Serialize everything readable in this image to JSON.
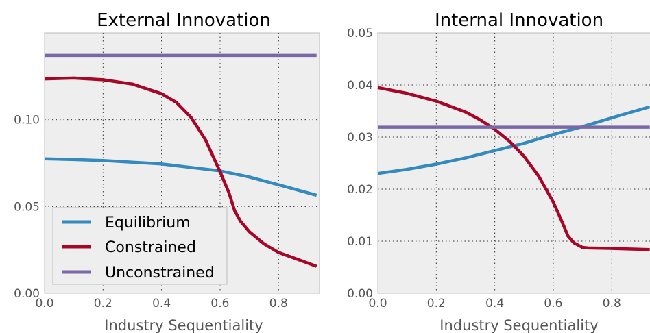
{
  "chart_data": [
    {
      "type": "line",
      "title": "External Innovation",
      "xlabel": "Industry Sequentiality",
      "ylabel": "",
      "xlim": [
        0,
        0.94
      ],
      "ylim": [
        0,
        0.15
      ],
      "xticks": [
        "0.0",
        "0.2",
        "0.4",
        "0.6",
        "0.8"
      ],
      "xtick_values": [
        0,
        0.2,
        0.4,
        0.6,
        0.8
      ],
      "yticks": [
        "0.00",
        "0.05",
        "0.10"
      ],
      "ytick_values": [
        0,
        0.05,
        0.1
      ],
      "grid": true,
      "legend": "bottom-left",
      "series": [
        {
          "name": "Equilibrium",
          "color": "#348ABD",
          "x": [
            0,
            0.1,
            0.2,
            0.3,
            0.4,
            0.5,
            0.6,
            0.7,
            0.8,
            0.93
          ],
          "y": [
            0.0775,
            0.077,
            0.0765,
            0.0755,
            0.0745,
            0.0725,
            0.0705,
            0.067,
            0.0625,
            0.0565
          ]
        },
        {
          "name": "Constrained",
          "color": "#A60628",
          "x": [
            0,
            0.1,
            0.2,
            0.3,
            0.4,
            0.45,
            0.5,
            0.55,
            0.6,
            0.63,
            0.65,
            0.67,
            0.7,
            0.75,
            0.8,
            0.85,
            0.93
          ],
          "y": [
            0.1235,
            0.124,
            0.123,
            0.1205,
            0.115,
            0.11,
            0.1015,
            0.0885,
            0.07,
            0.058,
            0.0475,
            0.0415,
            0.0355,
            0.0285,
            0.0235,
            0.0205,
            0.0155
          ]
        },
        {
          "name": "Unconstrained",
          "color": "#7A68A6",
          "x": [
            0,
            0.93
          ],
          "y": [
            0.137,
            0.137
          ]
        }
      ]
    },
    {
      "type": "line",
      "title": "Internal Innovation",
      "xlabel": "Industry Sequentiality",
      "ylabel": "",
      "xlim": [
        0,
        0.94
      ],
      "ylim": [
        0,
        0.05
      ],
      "xticks": [
        "0.0",
        "0.2",
        "0.4",
        "0.6",
        "0.8"
      ],
      "xtick_values": [
        0,
        0.2,
        0.4,
        0.6,
        0.8
      ],
      "yticks": [
        "0.00",
        "0.01",
        "0.02",
        "0.03",
        "0.04",
        "0.05"
      ],
      "ytick_values": [
        0,
        0.01,
        0.02,
        0.03,
        0.04,
        0.05
      ],
      "grid": true,
      "series": [
        {
          "name": "Equilibrium",
          "color": "#348ABD",
          "x": [
            0,
            0.1,
            0.2,
            0.3,
            0.4,
            0.5,
            0.6,
            0.7,
            0.8,
            0.93
          ],
          "y": [
            0.023,
            0.0238,
            0.0248,
            0.026,
            0.0274,
            0.0288,
            0.0305,
            0.032,
            0.0337,
            0.0358
          ]
        },
        {
          "name": "Constrained",
          "color": "#A60628",
          "x": [
            0,
            0.1,
            0.2,
            0.3,
            0.35,
            0.4,
            0.45,
            0.5,
            0.55,
            0.6,
            0.63,
            0.65,
            0.67,
            0.7,
            0.72,
            0.8,
            0.93
          ],
          "y": [
            0.0395,
            0.0384,
            0.0369,
            0.0348,
            0.0333,
            0.0315,
            0.0292,
            0.0263,
            0.0225,
            0.0175,
            0.0137,
            0.011,
            0.0097,
            0.0088,
            0.0087,
            0.0086,
            0.0084
          ]
        },
        {
          "name": "Unconstrained",
          "color": "#7A68A6",
          "x": [
            0,
            0.93
          ],
          "y": [
            0.0319,
            0.0319
          ]
        }
      ]
    }
  ]
}
